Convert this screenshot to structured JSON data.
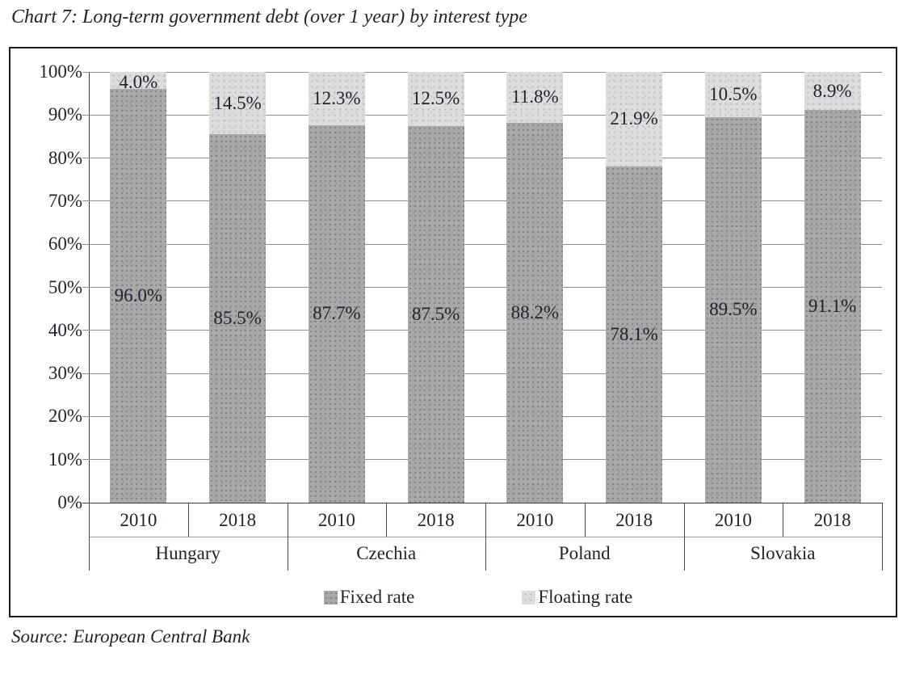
{
  "title": "Chart 7: Long-term government debt (over 1 year) by interest type",
  "source": "Source: European Central Bank",
  "legend": {
    "items": [
      {
        "label": "Fixed rate",
        "color": "#a8aaa8"
      },
      {
        "label": "Floating rate",
        "color": "#dcdedd"
      }
    ]
  },
  "colors": {
    "fixed_rate": "#a8aaa8",
    "floating_rate": "#dcdedd",
    "gridline": "#8e8e8e",
    "axis": "#3c3c3c",
    "frame": "#1c1c1c",
    "text": "#20242e"
  },
  "chart_data": {
    "type": "bar",
    "stacked": true,
    "title": "Chart 7: Long-term government debt (over 1 year) by interest type",
    "xlabel": "",
    "ylabel": "",
    "ylim": [
      0,
      100
    ],
    "grid": true,
    "legend_position": "bottom",
    "groups": [
      "Hungary",
      "Czechia",
      "Poland",
      "Slovakia"
    ],
    "categories": [
      "2010",
      "2018",
      "2010",
      "2018",
      "2010",
      "2018",
      "2010",
      "2018"
    ],
    "y_tick_labels": [
      "100%",
      "90%",
      "80%",
      "70%",
      "60%",
      "50%",
      "40%",
      "30%",
      "20%",
      "10%",
      "0%"
    ],
    "series": [
      {
        "name": "Fixed rate",
        "values": [
          96.0,
          85.5,
          87.7,
          87.5,
          88.2,
          78.1,
          89.5,
          91.1
        ],
        "labels": [
          "96.0%",
          "85.5%",
          "87.7%",
          "87.5%",
          "88.2%",
          "78.1%",
          "89.5%",
          "91.1%"
        ]
      },
      {
        "name": "Floating rate",
        "values": [
          4.0,
          14.5,
          12.3,
          12.5,
          11.8,
          21.9,
          10.5,
          8.9
        ],
        "labels": [
          "4.0%",
          "14.5%",
          "12.3%",
          "12.5%",
          "11.8%",
          "21.9%",
          "10.5%",
          "8.9%"
        ]
      }
    ]
  }
}
